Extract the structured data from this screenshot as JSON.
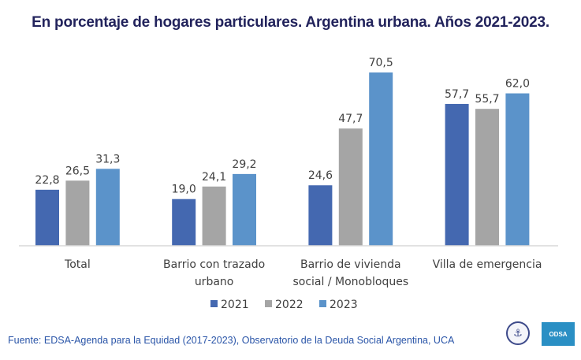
{
  "title": "En porcentaje de hogares particulares. Argentina urbana. Años 2021-2023.",
  "source": "Fuente: EDSA-Agenda para la Equidad (2017-2023), Observatorio de la Deuda Social Argentina, UCA",
  "logos": {
    "seal_icon": "anchor-cross-seal",
    "odsa_label": "ODSA"
  },
  "colors": {
    "2021": "#4468b0",
    "2022": "#a5a5a5",
    "2023": "#5b93ca",
    "title": "#22235c",
    "source": "#2a55a8"
  },
  "chart_data": {
    "type": "bar",
    "title": "En porcentaje de hogares particulares. Argentina urbana. Años 2021-2023.",
    "xlabel": "",
    "ylabel": "",
    "ylim": [
      0,
      70.5
    ],
    "grid": false,
    "legend_position": "bottom",
    "categories": [
      [
        "Total"
      ],
      [
        "Barrio con trazado",
        "urbano"
      ],
      [
        "Barrio de vivienda",
        "social / Monobloques"
      ],
      [
        "Villa de emergencia"
      ]
    ],
    "series": [
      {
        "name": "2021",
        "color": "#4468b0",
        "values": [
          22.8,
          19.0,
          24.6,
          57.7
        ],
        "labels": [
          "22,8",
          "19,0",
          "24,6",
          "57,7"
        ]
      },
      {
        "name": "2022",
        "color": "#a5a5a5",
        "values": [
          26.5,
          24.1,
          47.7,
          55.7
        ],
        "labels": [
          "26,5",
          "24,1",
          "47,7",
          "55,7"
        ]
      },
      {
        "name": "2023",
        "color": "#5b93ca",
        "values": [
          31.3,
          29.2,
          70.5,
          62.0
        ],
        "labels": [
          "31,3",
          "29,2",
          "70,5",
          "62,0"
        ]
      }
    ]
  }
}
